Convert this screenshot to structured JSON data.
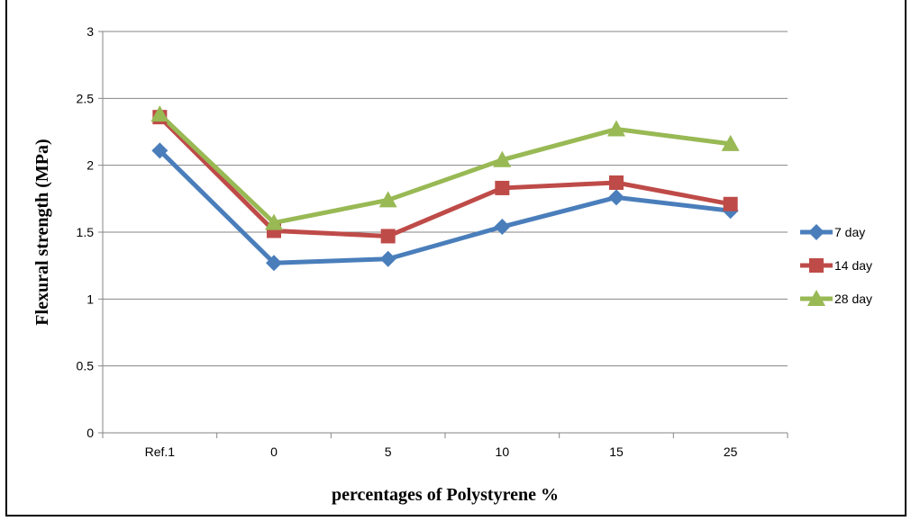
{
  "chart_data": {
    "type": "line",
    "categories": [
      "Ref.1",
      "0",
      "5",
      "10",
      "15",
      "25"
    ],
    "series": [
      {
        "name": "7 day",
        "values": [
          2.11,
          1.27,
          1.3,
          1.54,
          1.76,
          1.66
        ],
        "color": "#4A7EBB",
        "marker": "diamond"
      },
      {
        "name": "14 day",
        "values": [
          2.36,
          1.51,
          1.47,
          1.83,
          1.87,
          1.71
        ],
        "color": "#BE4B48",
        "marker": "square"
      },
      {
        "name": "28 day",
        "values": [
          2.38,
          1.57,
          1.74,
          2.04,
          2.27,
          2.16
        ],
        "color": "#98B954",
        "marker": "triangle"
      }
    ],
    "yticks": [
      "0",
      "0.5",
      "1",
      "1.5",
      "2",
      "2.5",
      "3"
    ],
    "ylim": [
      0,
      3
    ],
    "xlabel": "percentages of Polystyrene %",
    "ylabel": "Flexural strength (MPa)",
    "grid": "horizontal",
    "legend_position": "right"
  }
}
